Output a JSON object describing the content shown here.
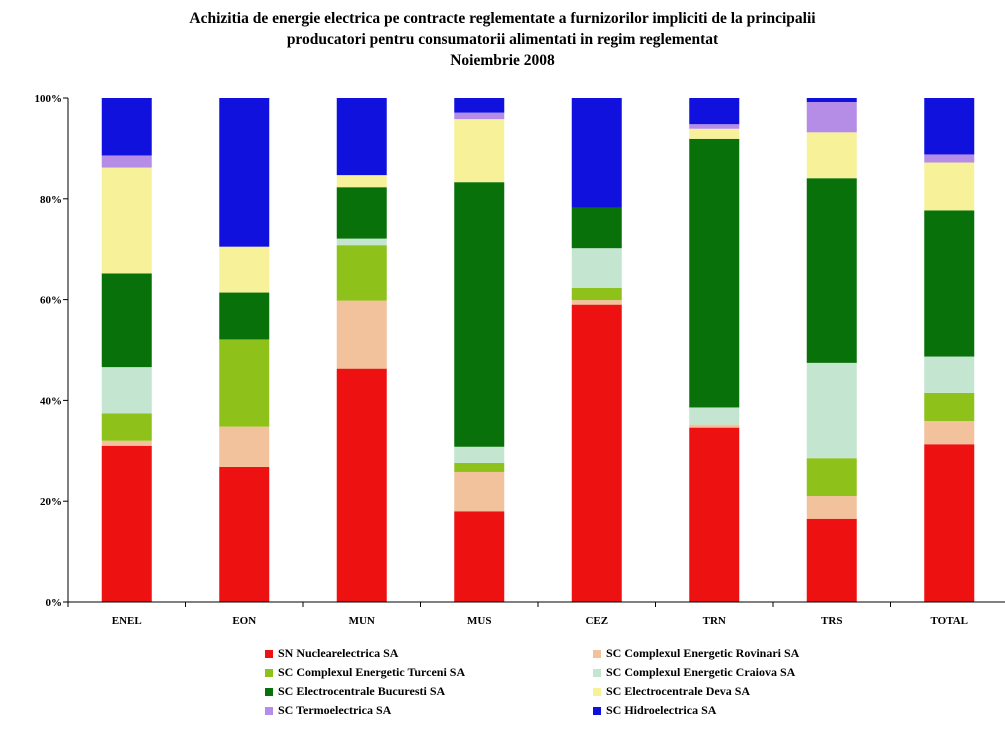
{
  "chart_data": {
    "type": "bar",
    "stacked": "percent",
    "title": [
      "Achizitia de energie electrica pe contracte reglementate a furnizorilor impliciti de la principalii",
      "producatori pentru consumatorii alimentati in regim reglementat",
      "Noiembrie 2008"
    ],
    "categories": [
      "ENEL",
      "EON",
      "MUN",
      "MUS",
      "CEZ",
      "TRN",
      "TRS",
      "TOTAL"
    ],
    "ylim": [
      0,
      100
    ],
    "yticks": [
      "0%",
      "20%",
      "40%",
      "60%",
      "80%",
      "100%"
    ],
    "grid": false,
    "legend_position": "bottom",
    "series": [
      {
        "name": "SN Nuclearelectrica SA",
        "color": "#ee1111",
        "values": [
          31.0,
          26.8,
          46.3,
          18.0,
          59.0,
          34.6,
          16.5,
          31.3
        ]
      },
      {
        "name": "SC Complexul Energetic Rovinari SA",
        "color": "#f2c29c",
        "values": [
          1.0,
          8.0,
          13.5,
          7.8,
          0.9,
          0.6,
          4.5,
          4.6
        ]
      },
      {
        "name": "SC Complexul Energetic Turceni SA",
        "color": "#8ec21a",
        "values": [
          5.4,
          17.3,
          11.0,
          1.8,
          2.4,
          0.0,
          7.5,
          5.6
        ]
      },
      {
        "name": "SC Complexul Energetic Craiova SA",
        "color": "#c4e6d0",
        "values": [
          9.2,
          0.0,
          1.3,
          3.2,
          7.9,
          3.4,
          18.9,
          7.2
        ]
      },
      {
        "name": "SC Electrocentrale Bucuresti SA",
        "color": "#097109",
        "values": [
          18.6,
          9.3,
          10.2,
          52.5,
          8.0,
          53.3,
          36.6,
          29.0
        ]
      },
      {
        "name": "SC Electrocentrale Deva SA",
        "color": "#f7f19a",
        "values": [
          21.0,
          9.1,
          2.4,
          12.5,
          0.0,
          2.0,
          9.1,
          9.5
        ]
      },
      {
        "name": "SC Termoelectrica SA",
        "color": "#b68de6",
        "values": [
          2.4,
          0.0,
          0.0,
          1.3,
          0.0,
          0.9,
          6.0,
          1.6
        ]
      },
      {
        "name": "SC Hidroelectrica SA",
        "color": "#1111dd",
        "values": [
          11.4,
          29.5,
          15.3,
          2.9,
          21.8,
          5.2,
          0.8,
          11.2
        ]
      }
    ]
  }
}
